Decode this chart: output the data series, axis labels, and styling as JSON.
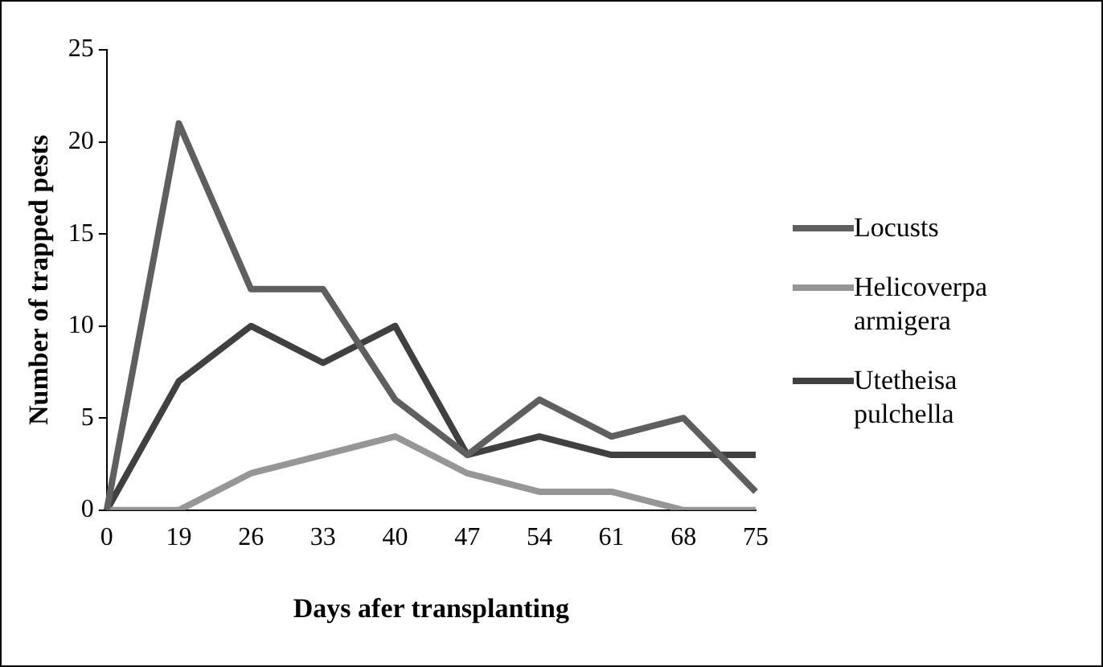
{
  "chart_data": {
    "type": "line",
    "xlabel": "Days afer transplanting",
    "ylabel": "Number of trapped pests",
    "categories": [
      "0",
      "19",
      "26",
      "33",
      "40",
      "47",
      "54",
      "61",
      "68",
      "75"
    ],
    "series": [
      {
        "name": "Locusts",
        "color": "#5f5f5f",
        "values": [
          0,
          21,
          12,
          12,
          6,
          3,
          6,
          4,
          5,
          1
        ]
      },
      {
        "name": "Helicoverpa armigera",
        "color": "#969696",
        "values": [
          0,
          0,
          2,
          3,
          4,
          2,
          1,
          1,
          0,
          0
        ]
      },
      {
        "name": "Utetheisa pulchella",
        "color": "#404040",
        "values": [
          0,
          7,
          10,
          8,
          10,
          3,
          4,
          3,
          3,
          3
        ]
      }
    ],
    "ylim": [
      0,
      25
    ],
    "yticks": [
      0,
      5,
      10,
      15,
      20,
      25
    ],
    "grid": false,
    "legend": "right",
    "marker": "none",
    "line_style": "solid"
  }
}
